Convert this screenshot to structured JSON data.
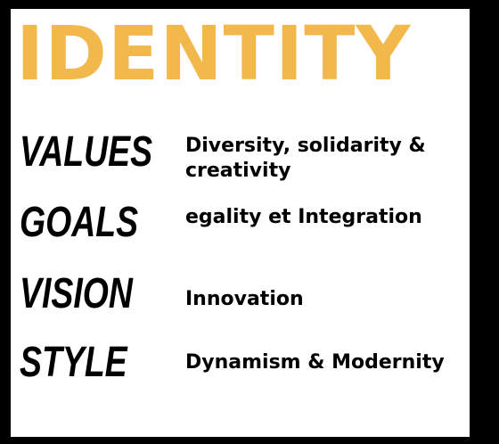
{
  "title": "IDENTITY",
  "colors": {
    "title": "#f2b84b",
    "background": "#000000",
    "card": "#ffffff",
    "text": "#000000"
  },
  "rows": [
    {
      "label": "VALUES",
      "text": "Diversity, solidarity & creativity"
    },
    {
      "label": "GOALS",
      "text": "egality  et Integration"
    },
    {
      "label": "VISION",
      "text": "Innovation"
    },
    {
      "label": "STYLE",
      "text": "Dynamism & Modernity"
    }
  ]
}
